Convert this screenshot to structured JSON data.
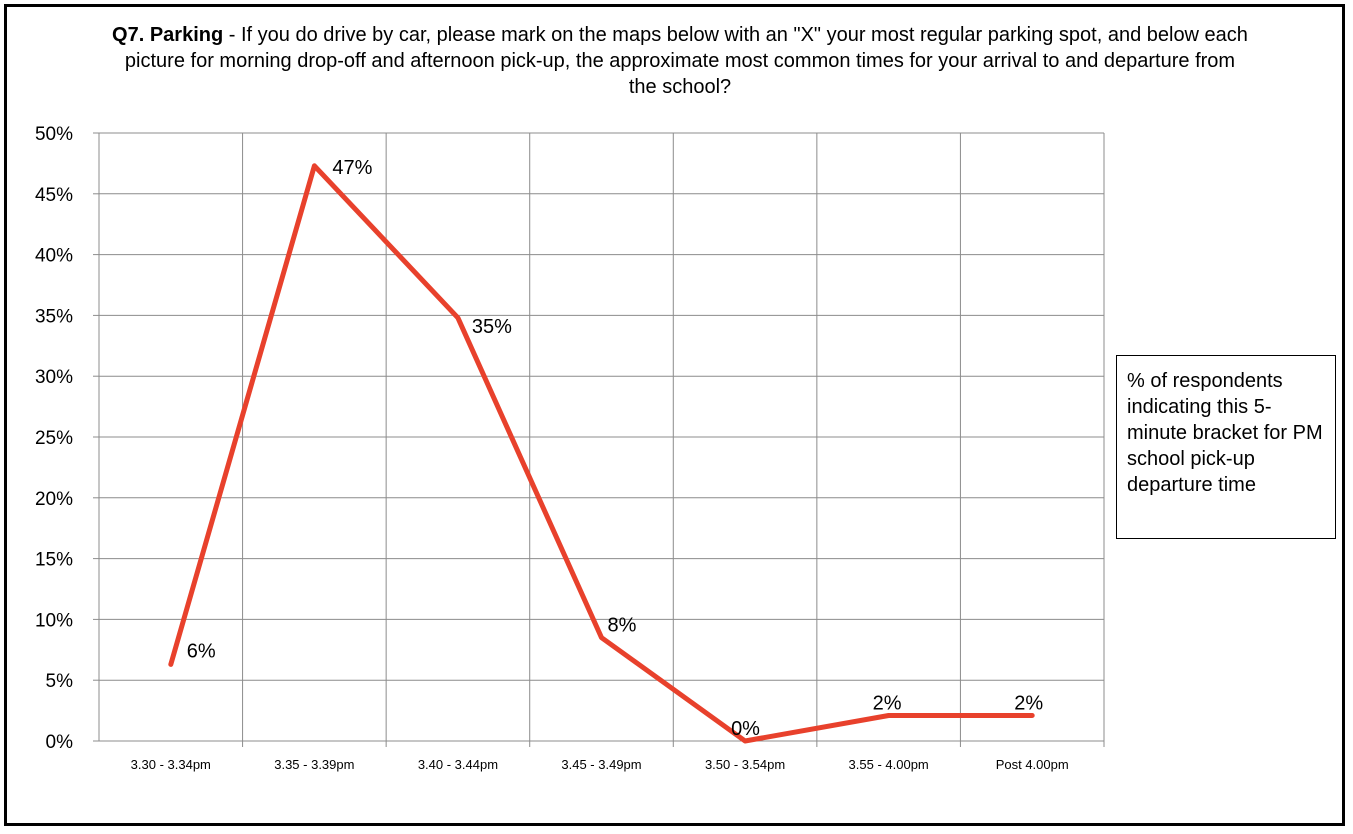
{
  "chart_data": {
    "type": "line",
    "title_bold": "Q7. Parking",
    "title_rest": " - If you do drive by car, please mark on the maps below with an \"X\" your most regular parking spot, and below each picture for morning drop-off and afternoon pick-up, the approximate most common times for your arrival to and departure from the school?",
    "categories": [
      "3.30 - 3.34pm",
      "3.35 - 3.39pm",
      "3.40 - 3.44pm",
      "3.45 - 3.49pm",
      "3.50 - 3.54pm",
      "3.55 - 4.00pm",
      "Post 4.00pm"
    ],
    "series": [
      {
        "name": "% of respondents indicating this 5-minute bracket for PM school pick-up departure time",
        "values": [
          0.063,
          0.473,
          0.348,
          0.085,
          0.0,
          0.021,
          0.021
        ],
        "labels": [
          "6%",
          "47%",
          "35%",
          "8%",
          "0%",
          "2%",
          "2%"
        ],
        "color": "#e8412c"
      }
    ],
    "ylim": [
      0,
      0.5
    ],
    "yticks": [
      "0%",
      "5%",
      "10%",
      "15%",
      "20%",
      "25%",
      "30%",
      "35%",
      "40%",
      "45%",
      "50%"
    ],
    "grid": true,
    "legend_position": "right"
  }
}
